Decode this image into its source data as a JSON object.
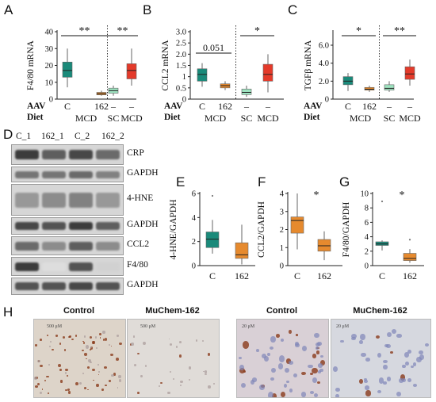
{
  "figure": {
    "panel_labels": [
      "A",
      "B",
      "C",
      "D",
      "E",
      "F",
      "G",
      "H"
    ],
    "row_labels": {
      "aav": "AAV",
      "diet": "Diet"
    },
    "conditions": {
      "top_aav": [
        "C",
        "162",
        "–",
        "–"
      ],
      "top_diet_mcd": "MCD",
      "top_diet_sc": "SC",
      "top_diet_mcd2": "MCD"
    },
    "lane_labels": [
      "C_1",
      "162_1",
      "C_2",
      "162_2"
    ],
    "blot_labels": [
      "CRP",
      "GAPDH",
      "4-HNE",
      "GAPDH",
      "CCL2",
      "F4/80",
      "GAPDH"
    ],
    "histology": {
      "titles": [
        "Control",
        "MuChem-162",
        "Control",
        "MuChem-162"
      ],
      "scale_bars": [
        "500 μM",
        "500 μM",
        "20 μM",
        "20 μM"
      ]
    }
  },
  "chart_data": [
    {
      "panel": "A",
      "type": "box",
      "ylabel": "F4/80 mRNA",
      "ylim": [
        0,
        40
      ],
      "yticks": [
        0,
        10,
        20,
        30,
        40
      ],
      "boxes": [
        {
          "x": "C",
          "color": "#1a8a7a",
          "min": 7,
          "q1": 13,
          "median": 17,
          "q3": 22,
          "max": 30
        },
        {
          "x": "162",
          "color": "#e68a2e",
          "min": 2,
          "q1": 2.5,
          "median": 3.2,
          "q3": 4,
          "max": 5
        },
        {
          "x": "SC",
          "color": "#9ee3c0",
          "min": 2,
          "q1": 3.5,
          "median": 5,
          "q3": 6.5,
          "max": 8
        },
        {
          "x": "MCD",
          "color": "#e43a2a",
          "min": 8,
          "q1": 12,
          "median": 17,
          "q3": 21,
          "max": 30
        }
      ],
      "brackets": [
        {
          "from": 0,
          "to": 1,
          "text": "**"
        },
        {
          "from": 2,
          "to": 3,
          "text": "**"
        }
      ]
    },
    {
      "panel": "B",
      "type": "box",
      "ylabel": "CCL2 mRNA",
      "ylim": [
        0,
        3.0
      ],
      "yticks": [
        0,
        0.5,
        1.0,
        1.5,
        2.0,
        2.5,
        3.0
      ],
      "ytick_labels": [
        "0",
        "0.5",
        "1",
        "1.5",
        "2.0",
        "2.5",
        "3.0"
      ],
      "boxes": [
        {
          "x": "C",
          "color": "#1a8a7a",
          "min": 0.55,
          "q1": 0.8,
          "median": 1.1,
          "q3": 1.35,
          "max": 1.6
        },
        {
          "x": "162",
          "color": "#e68a2e",
          "min": 0.4,
          "q1": 0.5,
          "median": 0.6,
          "q3": 0.68,
          "max": 0.8
        },
        {
          "x": "SC",
          "color": "#9ee3c0",
          "min": 0.1,
          "q1": 0.2,
          "median": 0.3,
          "q3": 0.45,
          "max": 0.6
        },
        {
          "x": "MCD",
          "color": "#e43a2a",
          "min": 0.3,
          "q1": 0.8,
          "median": 1.1,
          "q3": 1.55,
          "max": 2.0
        }
      ],
      "brackets": [
        {
          "from": 0,
          "to": 1,
          "text": "0.051",
          "underline": true
        },
        {
          "from": 2,
          "to": 3,
          "text": "*"
        }
      ]
    },
    {
      "panel": "C",
      "type": "box",
      "ylabel": "TGFβ mRNA",
      "ylim": [
        0,
        7.5
      ],
      "yticks": [
        0,
        2.0,
        4.0,
        6.0
      ],
      "ytick_labels": [
        "0",
        "2.0",
        "4.0",
        "6.0"
      ],
      "boxes": [
        {
          "x": "C",
          "color": "#1a8a7a",
          "min": 0.9,
          "q1": 1.6,
          "median": 2.0,
          "q3": 2.5,
          "max": 2.9
        },
        {
          "x": "162",
          "color": "#e68a2e",
          "min": 0.8,
          "q1": 1.0,
          "median": 1.1,
          "q3": 1.3,
          "max": 1.5
        },
        {
          "x": "SC",
          "color": "#9ee3c0",
          "min": 0.8,
          "q1": 1.0,
          "median": 1.2,
          "q3": 1.6,
          "max": 2.0
        },
        {
          "x": "MCD",
          "color": "#e43a2a",
          "min": 1.5,
          "q1": 2.2,
          "median": 2.8,
          "q3": 3.6,
          "max": 4.4
        }
      ],
      "brackets": [
        {
          "from": 0,
          "to": 1,
          "text": "*"
        },
        {
          "from": 2,
          "to": 3,
          "text": "**"
        }
      ]
    },
    {
      "panel": "E",
      "type": "box",
      "ylabel": "4-HNE/GAPDH",
      "ylim": [
        0,
        6
      ],
      "yticks": [
        0,
        2,
        4,
        6
      ],
      "categories": [
        "C",
        "162"
      ],
      "boxes": [
        {
          "x": "C",
          "color": "#1a8a7a",
          "min": 1.0,
          "q1": 1.5,
          "median": 2.2,
          "q3": 2.8,
          "max": 3.8,
          "outlier": 5.8
        },
        {
          "x": "162",
          "color": "#e68a2e",
          "min": 0.1,
          "q1": 0.6,
          "median": 0.9,
          "q3": 1.9,
          "max": 3.4
        }
      ]
    },
    {
      "panel": "F",
      "type": "box",
      "ylabel": "CCL2/GAPDH",
      "ylim": [
        0,
        4
      ],
      "yticks": [
        0,
        1,
        2,
        3,
        4
      ],
      "categories": [
        "C",
        "162"
      ],
      "annotation": "*",
      "boxes": [
        {
          "x": "C",
          "color": "#e68a2e",
          "min": 0.9,
          "q1": 1.8,
          "median": 2.5,
          "q3": 2.7,
          "max": 4.0
        },
        {
          "x": "162",
          "color": "#e68a2e",
          "min": 0.3,
          "q1": 0.8,
          "median": 1.1,
          "q3": 1.45,
          "max": 1.9
        }
      ]
    },
    {
      "panel": "G",
      "type": "box",
      "ylabel": "F4/80/GAPDH",
      "ylim": [
        0,
        10
      ],
      "yticks": [
        0,
        2,
        4,
        6,
        8,
        10
      ],
      "categories": [
        "C",
        "162"
      ],
      "annotation": "*",
      "boxes": [
        {
          "x": "C",
          "color": "#1a8a7a",
          "min": 2.1,
          "q1": 2.8,
          "median": 3.0,
          "q3": 3.3,
          "max": 3.5,
          "outlier": 8.9
        },
        {
          "x": "162",
          "color": "#e68a2e",
          "min": 0.4,
          "q1": 0.7,
          "median": 1.0,
          "q3": 1.7,
          "max": 2.3,
          "outlier": 3.6
        }
      ]
    }
  ]
}
